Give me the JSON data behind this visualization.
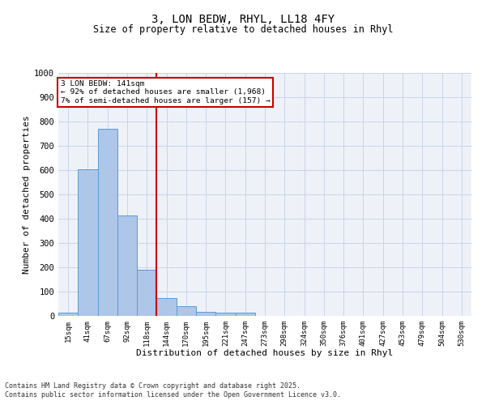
{
  "title1": "3, LON BEDW, RHYL, LL18 4FY",
  "title2": "Size of property relative to detached houses in Rhyl",
  "xlabel": "Distribution of detached houses by size in Rhyl",
  "ylabel": "Number of detached properties",
  "categories": [
    "15sqm",
    "41sqm",
    "67sqm",
    "92sqm",
    "118sqm",
    "144sqm",
    "170sqm",
    "195sqm",
    "221sqm",
    "247sqm",
    "273sqm",
    "298sqm",
    "324sqm",
    "350sqm",
    "376sqm",
    "401sqm",
    "427sqm",
    "453sqm",
    "479sqm",
    "504sqm",
    "530sqm"
  ],
  "values": [
    15,
    605,
    770,
    415,
    190,
    75,
    40,
    18,
    15,
    12,
    0,
    0,
    0,
    0,
    0,
    0,
    0,
    0,
    0,
    0,
    0
  ],
  "bar_color": "#aec6e8",
  "bar_edge_color": "#5b9bd5",
  "red_line_index": 5,
  "annotation_line1": "3 LON BEDW: 141sqm",
  "annotation_line2": "← 92% of detached houses are smaller (1,968)",
  "annotation_line3": "7% of semi-detached houses are larger (157) →",
  "annotation_box_color": "#ffffff",
  "annotation_box_edge": "#cc0000",
  "red_line_color": "#cc0000",
  "ylim": [
    0,
    1000
  ],
  "yticks": [
    0,
    100,
    200,
    300,
    400,
    500,
    600,
    700,
    800,
    900,
    1000
  ],
  "grid_color": "#c8d4e8",
  "background_color": "#eef2f8",
  "footer1": "Contains HM Land Registry data © Crown copyright and database right 2025.",
  "footer2": "Contains public sector information licensed under the Open Government Licence v3.0."
}
